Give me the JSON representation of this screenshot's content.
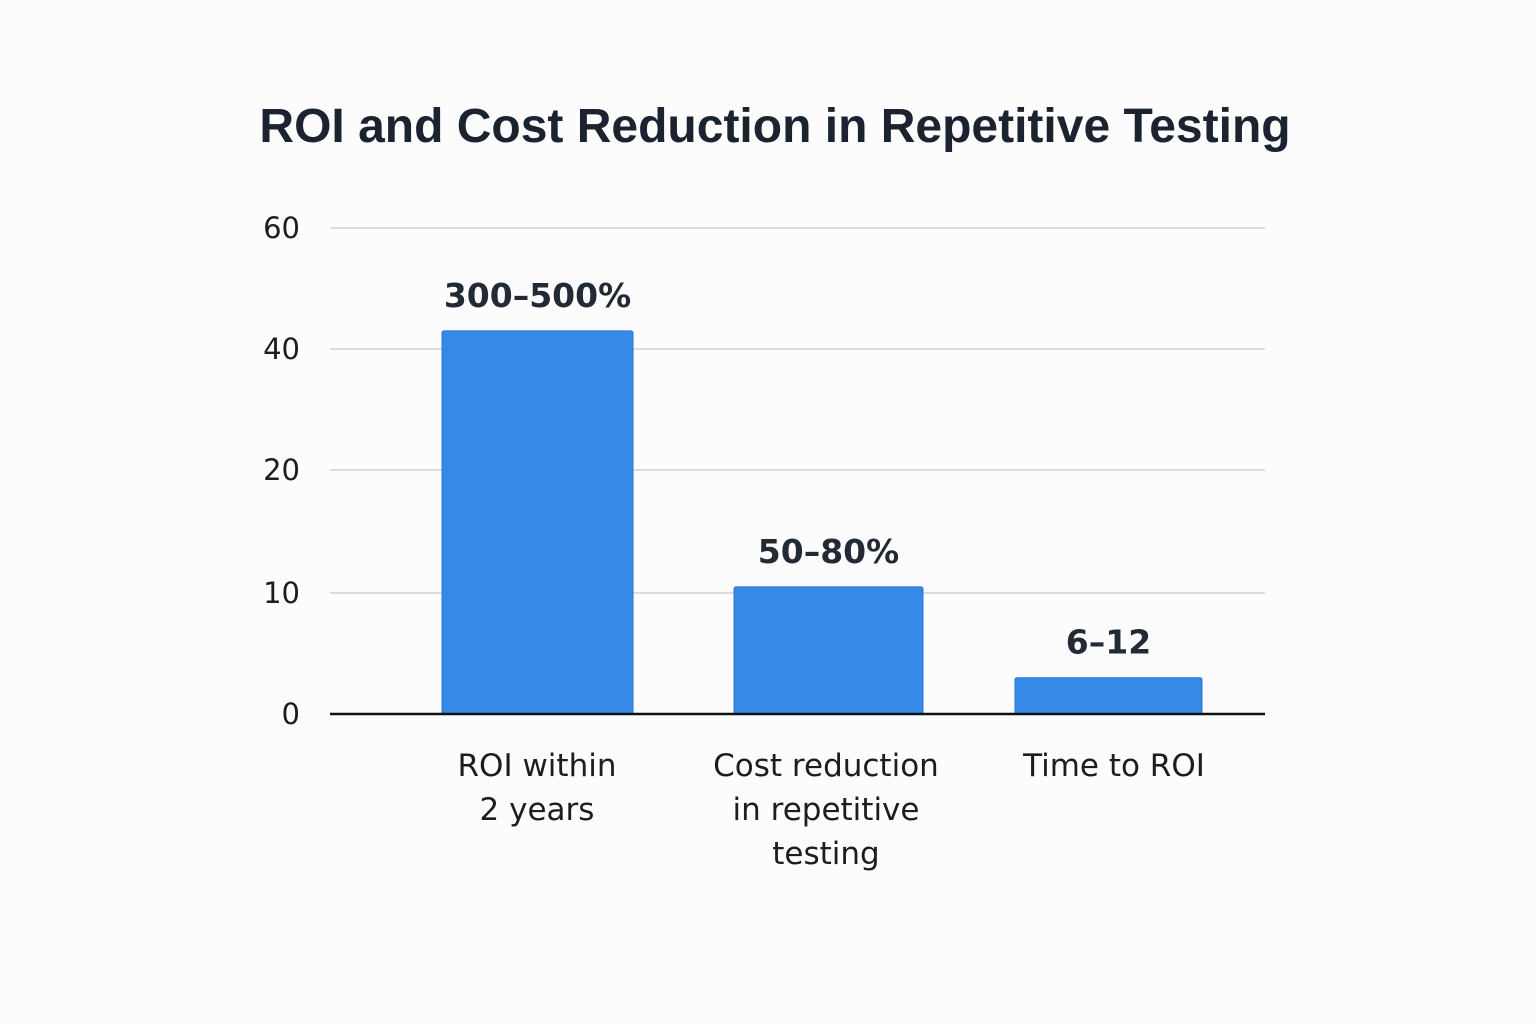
{
  "chart_data": {
    "type": "bar",
    "title": "ROI and Cost Reduction in Repetitive Testing",
    "xlabel": "",
    "ylabel": "",
    "categories": [
      [
        "ROI within",
        "2 years"
      ],
      [
        "Cost reduction",
        "in repetitive",
        "testing"
      ],
      [
        "Time to ROI"
      ]
    ],
    "values": [
      43,
      10.5,
      3
    ],
    "data_labels": [
      "300–500%",
      "50–80%",
      "6–12"
    ],
    "y_ticks": [
      0,
      10,
      20,
      40,
      60
    ],
    "ylim": [
      0,
      60
    ],
    "grid": true,
    "legend": "none",
    "bar_color": "#3789e8",
    "bar_edge_color": "#2a76d2"
  }
}
